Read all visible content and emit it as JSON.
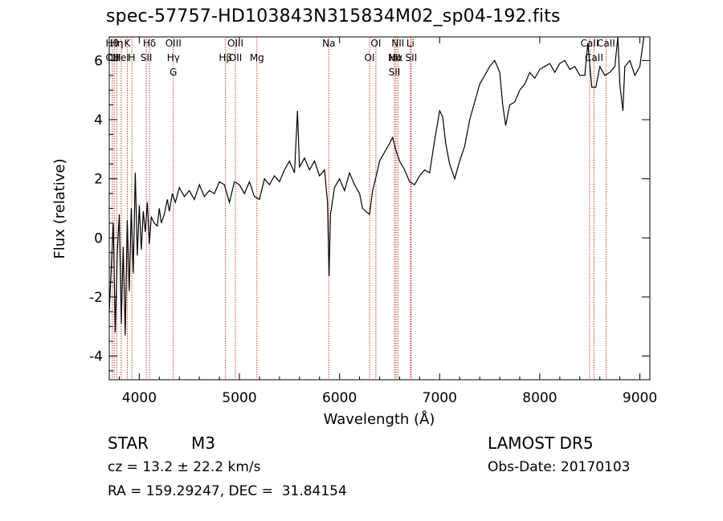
{
  "chart_data": {
    "type": "line",
    "title": "spec-57757-HD103843N315834M02_sp04-192.fits",
    "xlabel": "Wavelength (Å)",
    "ylabel": "Flux (relative)",
    "xlim": [
      3700,
      9100
    ],
    "ylim": [
      -4.8,
      6.8
    ],
    "xticks": [
      4000,
      5000,
      6000,
      7000,
      8000,
      9000
    ],
    "yticks": [
      -4,
      -2,
      0,
      2,
      4,
      6
    ],
    "grid": false,
    "series": [
      {
        "points": [
          [
            3700,
            -2.5
          ],
          [
            3720,
            -1.0
          ],
          [
            3740,
            0.5
          ],
          [
            3760,
            -3.2
          ],
          [
            3780,
            -0.5
          ],
          [
            3800,
            0.8
          ],
          [
            3820,
            -2.9
          ],
          [
            3840,
            -0.3
          ],
          [
            3860,
            -3.3
          ],
          [
            3880,
            0.6
          ],
          [
            3900,
            -1.8
          ],
          [
            3920,
            1.0
          ],
          [
            3940,
            -1.2
          ],
          [
            3960,
            2.2
          ],
          [
            3980,
            -0.6
          ],
          [
            4000,
            1.1
          ],
          [
            4020,
            -0.4
          ],
          [
            4040,
            0.9
          ],
          [
            4060,
            0.2
          ],
          [
            4080,
            1.2
          ],
          [
            4100,
            -0.2
          ],
          [
            4120,
            0.7
          ],
          [
            4150,
            0.5
          ],
          [
            4180,
            0.4
          ],
          [
            4200,
            1.0
          ],
          [
            4220,
            0.5
          ],
          [
            4250,
            0.8
          ],
          [
            4280,
            1.3
          ],
          [
            4300,
            0.9
          ],
          [
            4330,
            1.5
          ],
          [
            4360,
            1.2
          ],
          [
            4400,
            1.7
          ],
          [
            4450,
            1.4
          ],
          [
            4500,
            1.6
          ],
          [
            4550,
            1.3
          ],
          [
            4600,
            1.8
          ],
          [
            4650,
            1.4
          ],
          [
            4700,
            1.6
          ],
          [
            4750,
            1.5
          ],
          [
            4800,
            1.9
          ],
          [
            4850,
            1.8
          ],
          [
            4900,
            1.2
          ],
          [
            4950,
            1.9
          ],
          [
            5000,
            1.8
          ],
          [
            5050,
            1.5
          ],
          [
            5100,
            1.9
          ],
          [
            5150,
            1.4
          ],
          [
            5200,
            1.3
          ],
          [
            5250,
            2.0
          ],
          [
            5300,
            1.8
          ],
          [
            5350,
            2.1
          ],
          [
            5400,
            1.9
          ],
          [
            5450,
            2.3
          ],
          [
            5500,
            2.6
          ],
          [
            5550,
            2.2
          ],
          [
            5580,
            4.3
          ],
          [
            5600,
            2.4
          ],
          [
            5650,
            2.7
          ],
          [
            5700,
            2.3
          ],
          [
            5750,
            2.6
          ],
          [
            5800,
            2.1
          ],
          [
            5850,
            2.3
          ],
          [
            5880,
            1.2
          ],
          [
            5895,
            -1.3
          ],
          [
            5910,
            0.8
          ],
          [
            5950,
            1.7
          ],
          [
            6000,
            2.0
          ],
          [
            6050,
            1.6
          ],
          [
            6100,
            2.2
          ],
          [
            6150,
            1.8
          ],
          [
            6200,
            1.5
          ],
          [
            6230,
            1.0
          ],
          [
            6260,
            0.9
          ],
          [
            6300,
            0.8
          ],
          [
            6330,
            1.6
          ],
          [
            6360,
            2.0
          ],
          [
            6400,
            2.6
          ],
          [
            6450,
            2.9
          ],
          [
            6500,
            3.2
          ],
          [
            6530,
            3.4
          ],
          [
            6560,
            3.0
          ],
          [
            6600,
            2.6
          ],
          [
            6650,
            2.3
          ],
          [
            6700,
            1.9
          ],
          [
            6750,
            1.8
          ],
          [
            6800,
            2.1
          ],
          [
            6850,
            2.3
          ],
          [
            6900,
            2.2
          ],
          [
            6950,
            3.3
          ],
          [
            7000,
            4.3
          ],
          [
            7030,
            4.1
          ],
          [
            7060,
            3.2
          ],
          [
            7100,
            2.5
          ],
          [
            7150,
            2.0
          ],
          [
            7200,
            2.6
          ],
          [
            7250,
            3.1
          ],
          [
            7300,
            4.0
          ],
          [
            7350,
            4.6
          ],
          [
            7400,
            5.2
          ],
          [
            7450,
            5.5
          ],
          [
            7500,
            5.8
          ],
          [
            7550,
            6.0
          ],
          [
            7600,
            5.6
          ],
          [
            7630,
            4.5
          ],
          [
            7660,
            3.8
          ],
          [
            7700,
            4.5
          ],
          [
            7750,
            4.6
          ],
          [
            7800,
            5.0
          ],
          [
            7850,
            5.2
          ],
          [
            7900,
            5.6
          ],
          [
            7950,
            5.4
          ],
          [
            8000,
            5.7
          ],
          [
            8050,
            5.8
          ],
          [
            8100,
            5.9
          ],
          [
            8150,
            5.6
          ],
          [
            8200,
            5.9
          ],
          [
            8250,
            6.0
          ],
          [
            8300,
            5.7
          ],
          [
            8350,
            5.8
          ],
          [
            8400,
            5.5
          ],
          [
            8450,
            5.5
          ],
          [
            8480,
            6.6
          ],
          [
            8520,
            5.1
          ],
          [
            8560,
            5.1
          ],
          [
            8600,
            5.8
          ],
          [
            8650,
            5.5
          ],
          [
            8700,
            5.6
          ],
          [
            8750,
            5.8
          ],
          [
            8780,
            7.5
          ],
          [
            8800,
            5.2
          ],
          [
            8830,
            4.3
          ],
          [
            8850,
            5.8
          ],
          [
            8900,
            6.0
          ],
          [
            8950,
            5.5
          ],
          [
            9000,
            5.8
          ],
          [
            9040,
            7.5
          ]
        ]
      }
    ],
    "lines": [
      {
        "labels": [
          "Hθ",
          "OII"
        ],
        "x": 3730
      },
      {
        "labels": [
          "OII"
        ],
        "x": 3750
      },
      {
        "labels": [
          "Hη"
        ],
        "x": 3775
      },
      {
        "labels": [
          "HeI"
        ],
        "x": 3820
      },
      {
        "labels": [
          "K"
        ],
        "x": 3880
      },
      {
        "labels": [
          "H"
        ],
        "x": 3925
      },
      {
        "labels": [
          "Hδ"
        ],
        "x": 4102
      },
      {
        "labels": [
          "SII"
        ],
        "x": 4070
      },
      {
        "labels": [
          "OIII",
          "Hγ",
          "G"
        ],
        "x": 4340
      },
      {
        "labels": [
          "Hβ"
        ],
        "x": 4861
      },
      {
        "labels": [
          "OIII",
          "OII"
        ],
        "x": 4960
      },
      {
        "labels": [
          "Mg"
        ],
        "x": 5175
      },
      {
        "labels": [
          "Na"
        ],
        "x": 5893
      },
      {
        "labels": [
          "OI"
        ],
        "x": 6300
      },
      {
        "labels": [
          "OI"
        ],
        "x": 6363
      },
      {
        "labels": [
          "Hα"
        ],
        "x": 6563
      },
      {
        "labels": [
          "NII"
        ],
        "x": 6583
      },
      {
        "labels": [
          "SII"
        ],
        "x": 6716
      },
      {
        "labels": [
          "Li"
        ],
        "x": 6708
      },
      {
        "labels": [
          "NII",
          "SII"
        ],
        "x": 6548
      },
      {
        "labels": [
          "CaII"
        ],
        "x": 8498
      },
      {
        "labels": [
          "CaII"
        ],
        "x": 8542
      },
      {
        "labels": [
          "CaII"
        ],
        "x": 8662
      }
    ]
  },
  "info": {
    "object_class": "STAR",
    "subclass": "M3",
    "survey": "LAMOST DR5",
    "redshift": "cz = 13.2 ± 22.2 km/s",
    "obs_date": "Obs-Date: 20170103",
    "coords": "RA = 159.29247, DEC =  31.84154"
  }
}
